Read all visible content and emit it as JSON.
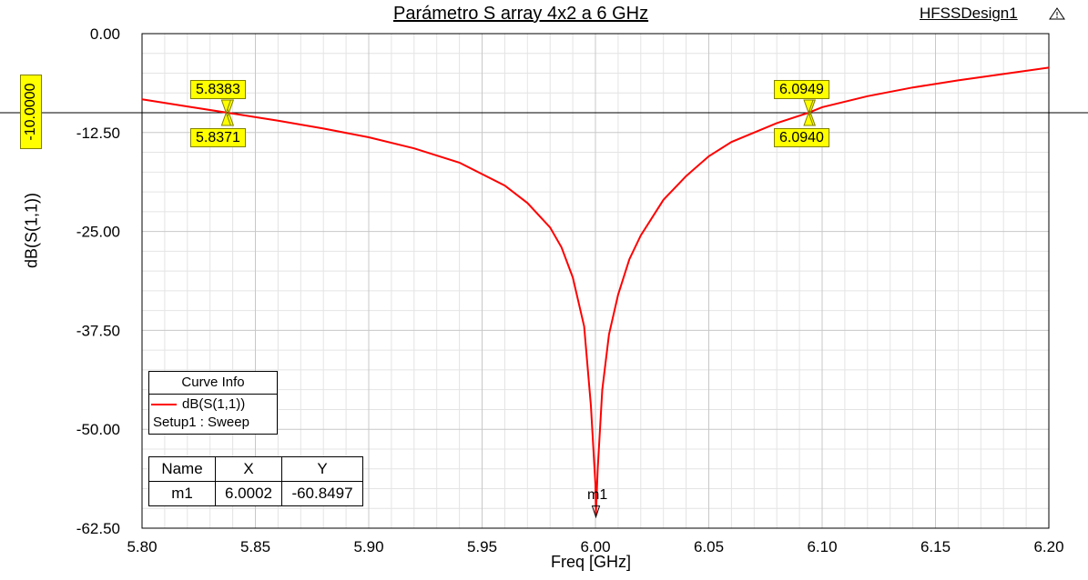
{
  "title": "Parámetro S array 4x2 a 6 GHz",
  "design_name": "HFSSDesign1",
  "colors": {
    "curve": "#ff0000",
    "marker_fill": "#ffff00",
    "grid_major": "#c8c8c8",
    "grid_minor": "#e4e4e4"
  },
  "reference_line_label": "-10.0000",
  "legend": {
    "header": "Curve Info",
    "entry": "dB(S(1,1))",
    "source": "Setup1 : Sweep"
  },
  "marker_table": {
    "headers": [
      "Name",
      "X",
      "Y"
    ],
    "rows": [
      [
        "m1",
        "6.0002",
        "-60.8497"
      ]
    ]
  },
  "marker_labels": [
    "5.8383",
    "5.8371",
    "6.0949",
    "6.0940"
  ],
  "m1_label": "m1",
  "chart_data": {
    "type": "line",
    "title": "Parámetro S array 4x2 a 6 GHz",
    "xlabel": "Freq [GHz]",
    "ylabel": "dB(S(1,1))",
    "xlim": [
      5.8,
      6.2
    ],
    "ylim": [
      -62.5,
      0.0
    ],
    "x_ticks": [
      "5.80",
      "5.85",
      "5.90",
      "5.95",
      "6.00",
      "6.05",
      "6.10",
      "6.15",
      "6.20"
    ],
    "y_ticks": [
      "0.00",
      "-12.50",
      "-25.00",
      "-37.50",
      "-50.00",
      "-62.50"
    ],
    "grid": true,
    "series": [
      {
        "name": "dB(S(1,1))",
        "x": [
          5.8,
          5.82,
          5.84,
          5.86,
          5.88,
          5.9,
          5.92,
          5.94,
          5.96,
          5.97,
          5.98,
          5.985,
          5.99,
          5.995,
          5.998,
          6.0,
          6.0002,
          6.001,
          6.003,
          6.006,
          6.01,
          6.015,
          6.02,
          6.03,
          6.04,
          6.05,
          6.06,
          6.08,
          6.094,
          6.1,
          6.12,
          6.14,
          6.16,
          6.18,
          6.2
        ],
        "y": [
          -8.3,
          -9.2,
          -10.1,
          -11.0,
          -12.0,
          -13.1,
          -14.5,
          -16.3,
          -19.2,
          -21.4,
          -24.5,
          -27.0,
          -30.8,
          -37.0,
          -47.0,
          -57.0,
          -60.85,
          -55.0,
          -45.0,
          -38.0,
          -33.0,
          -28.5,
          -25.5,
          -21.0,
          -18.0,
          -15.5,
          -13.7,
          -11.3,
          -10.0,
          -9.3,
          -7.9,
          -6.8,
          -5.9,
          -5.1,
          -4.3
        ]
      }
    ],
    "reference_line": {
      "y": -10.0,
      "label": "-10.0000"
    },
    "markers": [
      {
        "name": "m1",
        "x": 6.0002,
        "y": -60.8497
      },
      {
        "x": 5.8383,
        "y": -10.0,
        "label": "5.8383"
      },
      {
        "x": 5.8371,
        "y": -10.0,
        "label": "5.8371"
      },
      {
        "x": 6.0949,
        "y": -10.0,
        "label": "6.0949"
      },
      {
        "x": 6.094,
        "y": -10.0,
        "label": "6.0940"
      }
    ]
  }
}
